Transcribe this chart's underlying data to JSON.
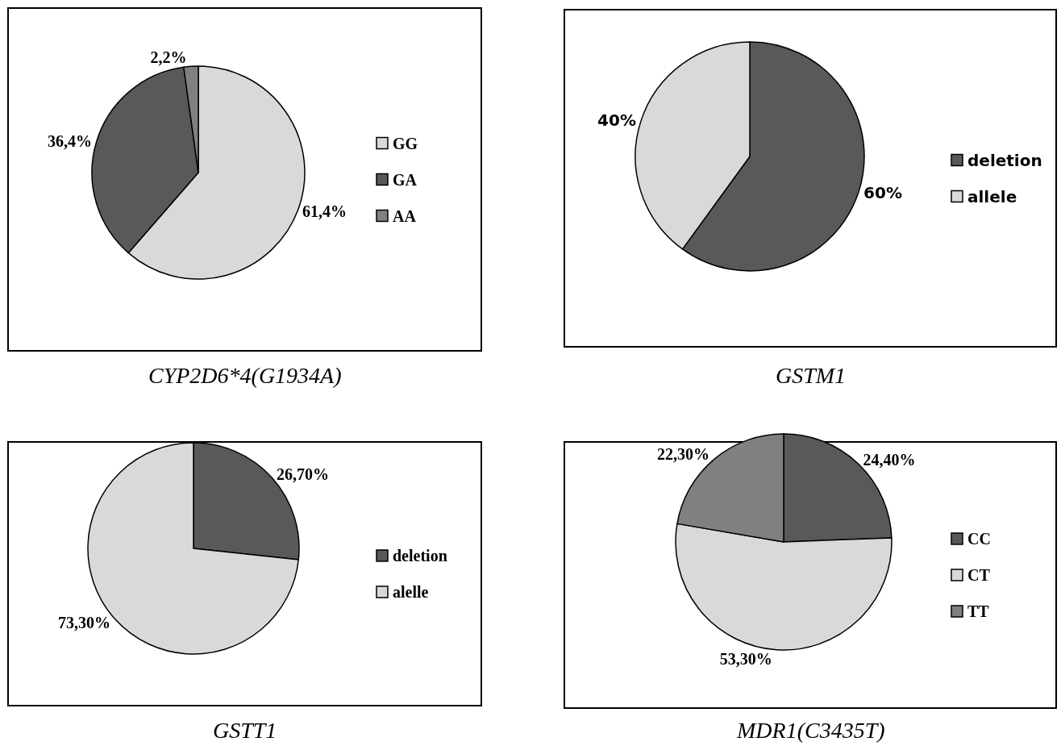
{
  "chart_data": [
    {
      "type": "pie",
      "title": "CYP2D6*4(G1934A)",
      "categories": [
        "GG",
        "GA",
        "AA"
      ],
      "values": [
        61.4,
        36.4,
        2.2
      ],
      "value_labels": [
        "61,4%",
        "36,4%",
        "2,2%"
      ],
      "colors": [
        "#d9d9d9",
        "#595959",
        "#808080"
      ],
      "legend": "right"
    },
    {
      "type": "pie",
      "title": "GSTM1",
      "categories": [
        "deletion",
        "allele"
      ],
      "values": [
        60,
        40
      ],
      "value_labels": [
        "60%",
        "40%"
      ],
      "colors": [
        "#595959",
        "#d9d9d9"
      ],
      "legend": "right"
    },
    {
      "type": "pie",
      "title": "GSTT1",
      "categories": [
        "deletion",
        "alelle"
      ],
      "values": [
        26.7,
        73.3
      ],
      "value_labels": [
        "26,70%",
        "73,30%"
      ],
      "colors": [
        "#595959",
        "#d9d9d9"
      ],
      "legend": "right"
    },
    {
      "type": "pie",
      "title": "MDR1(C3435T)",
      "categories": [
        "CC",
        "CT",
        "TT"
      ],
      "values": [
        24.4,
        53.3,
        22.3
      ],
      "value_labels": [
        "24,40%",
        "53,30%",
        "22,30%"
      ],
      "colors": [
        "#595959",
        "#d9d9d9",
        "#808080"
      ],
      "legend": "right"
    }
  ]
}
